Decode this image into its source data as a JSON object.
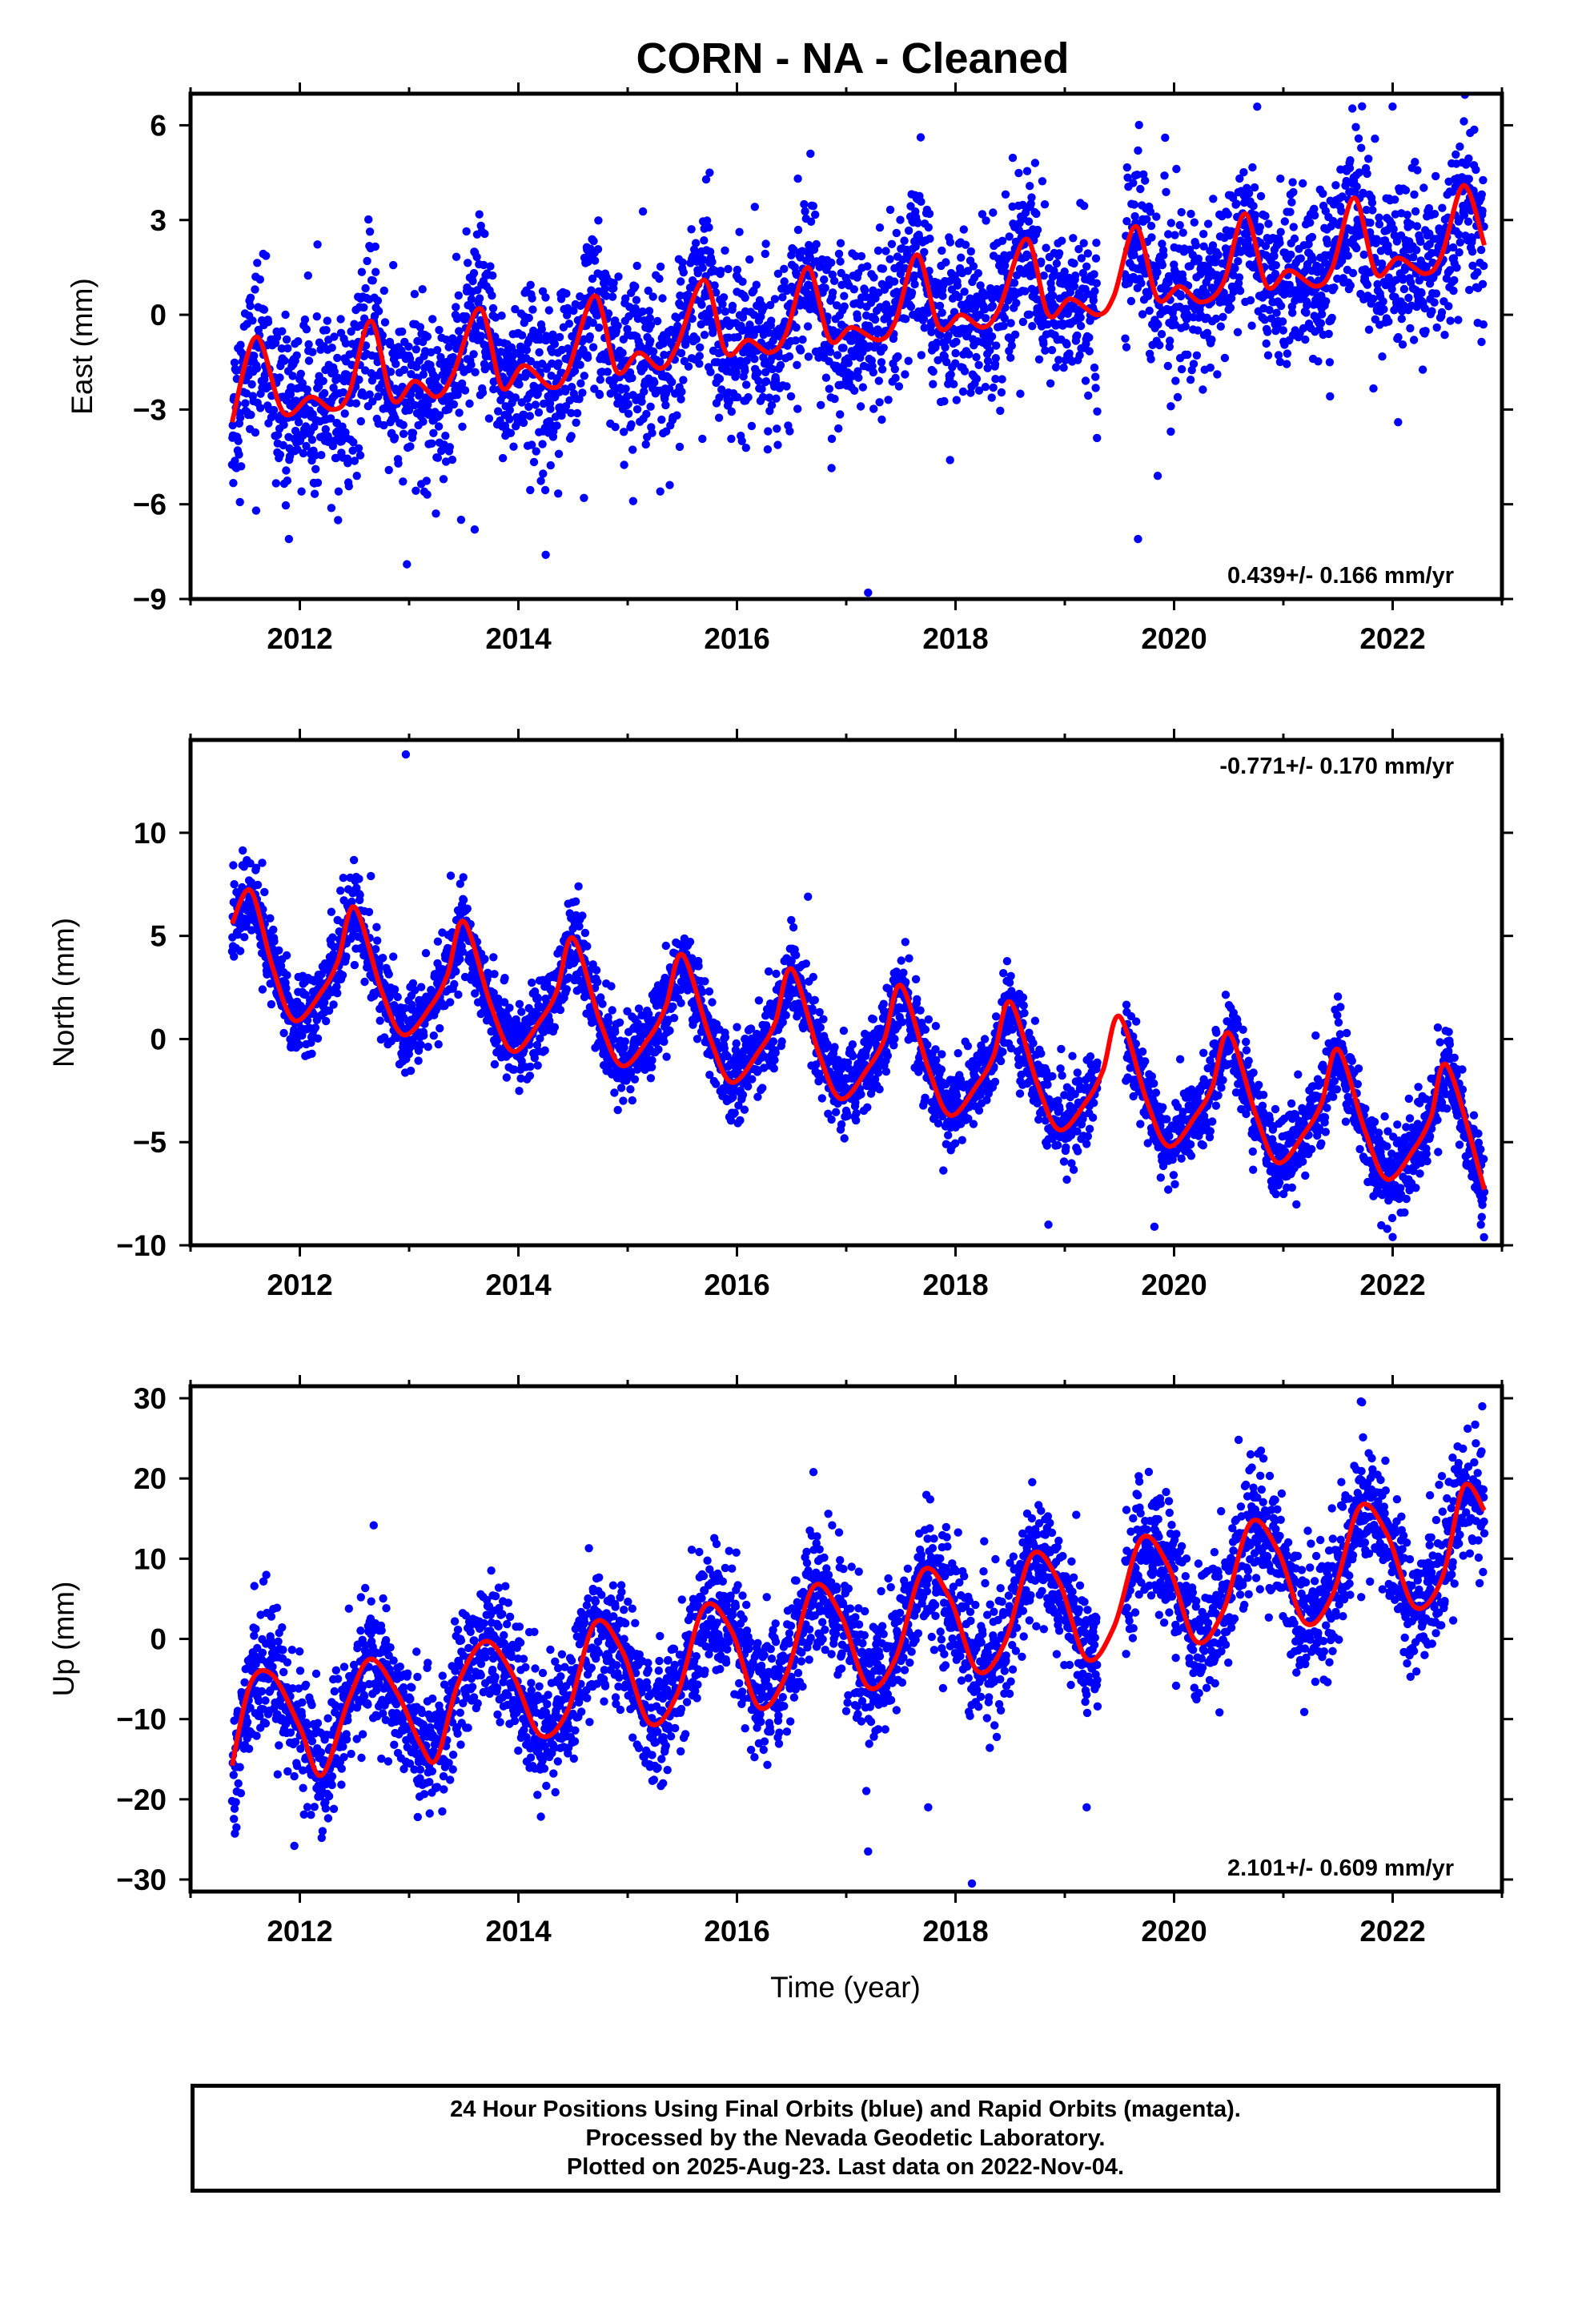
{
  "title": "CORN  - NA - Cleaned",
  "xlabel": "Time (year)",
  "footer": {
    "line1": "24 Hour Positions Using Final Orbits (blue) and Rapid Orbits (magenta).",
    "line2": "Processed by the Nevada Geodetic Laboratory.",
    "line3": "Plotted on 2025-Aug-23. Last data on 2022-Nov-04."
  },
  "colors": {
    "points": "#0000ff",
    "fit": "#ff0000",
    "frame": "#000000"
  },
  "chart_data": [
    {
      "type": "scatter",
      "ylabel": "East (mm)",
      "rate_label": "0.439+/- 0.166 mm/yr",
      "xlim": [
        2011.0,
        2023.0
      ],
      "ylim": [
        -9,
        7
      ],
      "xticks": [
        2012,
        2014,
        2016,
        2018,
        2020,
        2022
      ],
      "yticks": [
        -9,
        -6,
        -3,
        0,
        3,
        6
      ],
      "data_span": [
        2011.38,
        2022.84
      ],
      "gap": [
        2019.3,
        2019.55
      ],
      "trend_mm_per_yr": 0.439,
      "fit_curve": {
        "x": [
          2011.38,
          2011.6,
          2011.85,
          2012.1,
          2012.3,
          2012.45,
          2012.65,
          2012.85,
          2013.05,
          2013.25,
          2013.4,
          2013.65,
          2013.85,
          2014.05,
          2014.3,
          2014.45,
          2014.7,
          2014.9,
          2015.1,
          2015.3,
          2015.45,
          2015.7,
          2015.9,
          2016.1,
          2016.3,
          2016.45,
          2016.65,
          2016.85,
          2017.05,
          2017.3,
          2017.45,
          2017.65,
          2017.85,
          2018.05,
          2018.25,
          2018.4,
          2018.65,
          2018.85,
          2019.05,
          2019.3,
          2019.45,
          2019.65,
          2019.85,
          2020.05,
          2020.25,
          2020.45,
          2020.65,
          2020.85,
          2021.05,
          2021.3,
          2021.45,
          2021.65,
          2021.85,
          2022.05,
          2022.3,
          2022.45,
          2022.65,
          2022.84
        ],
        "y": [
          -3.4,
          -0.7,
          -3.1,
          -2.6,
          -3.0,
          -2.5,
          -0.2,
          -2.7,
          -2.1,
          -2.6,
          -1.9,
          0.2,
          -2.3,
          -1.6,
          -2.3,
          -1.8,
          0.6,
          -1.8,
          -1.2,
          -1.7,
          -1.0,
          1.1,
          -1.2,
          -0.8,
          -1.2,
          -0.6,
          1.5,
          -0.8,
          -0.4,
          -0.8,
          -0.2,
          1.9,
          -0.4,
          0.0,
          -0.4,
          0.2,
          2.4,
          0.0,
          0.5,
          0.0,
          0.6,
          2.8,
          0.5,
          0.9,
          0.4,
          1.0,
          3.2,
          0.9,
          1.4,
          0.9,
          1.5,
          3.7,
          1.3,
          1.8,
          1.3,
          1.9,
          4.1,
          2.2
        ]
      },
      "seasonal": {
        "amplitude_mm": 1.9,
        "noise_mm": 1.3,
        "intercept_2011_4": -2.4
      },
      "outliers": [
        {
          "x": 2011.6,
          "y": -6.2
        },
        {
          "x": 2011.9,
          "y": -7.1
        },
        {
          "x": 2012.35,
          "y": -6.5
        },
        {
          "x": 2012.98,
          "y": -7.9
        },
        {
          "x": 2013.6,
          "y": -6.8
        },
        {
          "x": 2014.25,
          "y": -7.6
        },
        {
          "x": 2014.6,
          "y": -5.8
        },
        {
          "x": 2015.05,
          "y": -5.9
        },
        {
          "x": 2017.2,
          "y": -8.8
        },
        {
          "x": 2017.95,
          "y": -4.6
        },
        {
          "x": 2019.67,
          "y": -7.1
        },
        {
          "x": 2019.97,
          "y": -3.7
        },
        {
          "x": 2019.85,
          "y": -5.1
        },
        {
          "x": 2022.05,
          "y": -3.4
        },
        {
          "x": 2021.72,
          "y": 6.6
        },
        {
          "x": 2019.67,
          "y": 5.2
        },
        {
          "x": 2015.75,
          "y": 4.5
        }
      ]
    },
    {
      "type": "scatter",
      "ylabel": "North (mm)",
      "rate_label": "-0.771+/- 0.170 mm/yr",
      "xlim": [
        2011.0,
        2023.0
      ],
      "ylim": [
        -10,
        14.5
      ],
      "xticks": [
        2012,
        2014,
        2016,
        2018,
        2020,
        2022
      ],
      "yticks": [
        -10,
        -5,
        0,
        5,
        10
      ],
      "data_span": [
        2011.38,
        2022.84
      ],
      "gap": [
        2019.3,
        2019.55
      ],
      "trend_mm_per_yr": -0.771,
      "fit_curve": {
        "x": [
          2011.38,
          2011.55,
          2011.75,
          2011.95,
          2012.2,
          2012.35,
          2012.5,
          2012.75,
          2012.95,
          2013.2,
          2013.35,
          2013.5,
          2013.75,
          2013.95,
          2014.2,
          2014.35,
          2014.5,
          2014.75,
          2014.95,
          2015.2,
          2015.35,
          2015.5,
          2015.75,
          2015.95,
          2016.2,
          2016.35,
          2016.5,
          2016.75,
          2016.95,
          2017.2,
          2017.35,
          2017.5,
          2017.75,
          2017.95,
          2018.2,
          2018.35,
          2018.5,
          2018.75,
          2018.95,
          2019.2,
          2019.35,
          2019.5,
          2019.75,
          2019.95,
          2020.2,
          2020.35,
          2020.5,
          2020.75,
          2020.95,
          2021.2,
          2021.35,
          2021.5,
          2021.75,
          2021.95,
          2022.2,
          2022.35,
          2022.5,
          2022.84
        ],
        "y": [
          5.6,
          7.2,
          3.5,
          0.9,
          2.3,
          3.8,
          6.4,
          2.3,
          0.2,
          1.6,
          3.1,
          5.7,
          1.6,
          -0.6,
          0.9,
          2.3,
          4.9,
          0.8,
          -1.3,
          0.1,
          1.6,
          4.1,
          0.1,
          -2.1,
          -0.6,
          0.8,
          3.4,
          -0.7,
          -2.9,
          -1.4,
          0.0,
          2.6,
          -1.4,
          -3.7,
          -2.2,
          -0.8,
          1.8,
          -2.2,
          -4.4,
          -3.0,
          -1.5,
          1.1,
          -3.0,
          -5.2,
          -3.7,
          -2.3,
          0.3,
          -3.7,
          -6.0,
          -4.5,
          -3.1,
          -0.5,
          -4.5,
          -6.8,
          -5.3,
          -3.8,
          -1.3,
          -7.3
        ]
      },
      "seasonal": {
        "amplitude_mm": 3.5,
        "noise_mm": 1.0,
        "intercept_2011_4": 3.0
      },
      "outliers": [
        {
          "x": 2012.97,
          "y": 13.8
        },
        {
          "x": 2018.85,
          "y": -9.0
        },
        {
          "x": 2019.82,
          "y": -9.1
        },
        {
          "x": 2022.0,
          "y": -9.6
        },
        {
          "x": 2021.95,
          "y": -9.2
        },
        {
          "x": 2011.6,
          "y": 8.3
        },
        {
          "x": 2012.65,
          "y": 7.9
        },
        {
          "x": 2014.55,
          "y": 7.4
        },
        {
          "x": 2016.65,
          "y": 6.9
        }
      ]
    },
    {
      "type": "scatter",
      "ylabel": "Up (mm)",
      "rate_label": "2.101+/- 0.609 mm/yr",
      "xlim": [
        2011.0,
        2023.0
      ],
      "ylim": [
        -31.5,
        31.5
      ],
      "xticks": [
        2012,
        2014,
        2016,
        2018,
        2020,
        2022
      ],
      "yticks": [
        -30,
        -20,
        -10,
        0,
        10,
        20,
        30
      ],
      "data_span": [
        2011.38,
        2022.84
      ],
      "gap": [
        2019.3,
        2019.55
      ],
      "trend_mm_per_yr": 2.101,
      "fit_curve": {
        "x": [
          2011.38,
          2011.55,
          2011.75,
          2012.0,
          2012.2,
          2012.45,
          2012.65,
          2012.9,
          2013.1,
          2013.25,
          2013.45,
          2013.7,
          2013.95,
          2014.2,
          2014.45,
          2014.7,
          2014.95,
          2015.2,
          2015.45,
          2015.7,
          2015.95,
          2016.2,
          2016.45,
          2016.7,
          2016.95,
          2017.2,
          2017.45,
          2017.7,
          2017.95,
          2018.2,
          2018.45,
          2018.7,
          2018.95,
          2019.2,
          2019.45,
          2019.7,
          2019.95,
          2020.2,
          2020.45,
          2020.7,
          2020.95,
          2021.2,
          2021.45,
          2021.7,
          2021.95,
          2022.2,
          2022.45,
          2022.65,
          2022.84
        ],
        "y": [
          -15.8,
          -5.5,
          -4.5,
          -11.0,
          -17.0,
          -7.5,
          -2.5,
          -7.0,
          -13.0,
          -15.0,
          -5.5,
          -0.3,
          -4.5,
          -12.0,
          -9.0,
          2.0,
          -1.5,
          -10.5,
          -7.0,
          4.0,
          1.0,
          -8.5,
          -4.5,
          6.5,
          3.0,
          -6.0,
          -2.5,
          8.5,
          5.0,
          -4.0,
          -0.5,
          10.5,
          7.0,
          -2.5,
          1.5,
          12.5,
          9.0,
          -0.3,
          3.5,
          14.5,
          11.0,
          2.0,
          5.5,
          16.5,
          13.0,
          4.0,
          7.5,
          19.0,
          16.0
        ]
      },
      "seasonal": {
        "amplitude_mm": 8.5,
        "noise_mm": 4.0,
        "intercept_2011_4": -9.0
      },
      "outliers": [
        {
          "x": 2011.42,
          "y": -23.5
        },
        {
          "x": 2011.95,
          "y": -25.8
        },
        {
          "x": 2012.2,
          "y": -24.8
        },
        {
          "x": 2017.2,
          "y": -26.5
        },
        {
          "x": 2018.15,
          "y": -30.5
        },
        {
          "x": 2019.2,
          "y": -21.0
        },
        {
          "x": 2017.75,
          "y": -21.0
        },
        {
          "x": 2021.72,
          "y": 29.5
        },
        {
          "x": 2022.82,
          "y": 29.0
        },
        {
          "x": 2016.7,
          "y": 20.8
        },
        {
          "x": 2020.7,
          "y": 23.0
        }
      ]
    }
  ]
}
